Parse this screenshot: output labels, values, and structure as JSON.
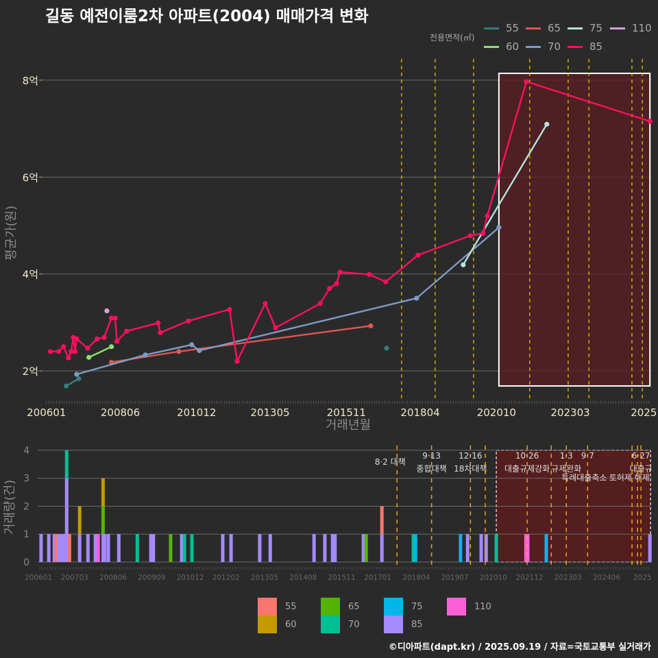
{
  "title": "길동 예전이룸2차 아파트(2004) 매매가격 변화",
  "legend_title": "전용면적(㎡)",
  "footer": "©디아파트(dapt.kr) / 2025.09.19 / 자료=국토교통부 실거래가",
  "colors": {
    "line": {
      "55": "#2f7f7b",
      "60": "#8fe070",
      "65": "#e0574e",
      "70": "#7c9cc6",
      "75": "#b6e3de",
      "85": "#ff0f5f",
      "110": "#d9a0d8"
    },
    "bar": {
      "55": "#F8766D",
      "60": "#C49A00",
      "65": "#53B400",
      "70": "#00C094",
      "75": "#00B6EB",
      "85": "#A58AFF",
      "110": "#FB61D7"
    },
    "policy": "#e6c000",
    "policy_bottom": "#f0a020",
    "highlight": "#5a1f22"
  },
  "legend_top": [
    {
      "label": "55",
      "key": "55"
    },
    {
      "label": "65",
      "key": "65"
    },
    {
      "label": "75",
      "key": "75"
    },
    {
      "label": "110",
      "key": "110"
    },
    {
      "label": "60",
      "key": "60"
    },
    {
      "label": "70",
      "key": "70"
    },
    {
      "label": "85",
      "key": "85"
    }
  ],
  "legend_bottom": [
    {
      "label": "55",
      "key": "55"
    },
    {
      "label": "60",
      "key": "60"
    },
    {
      "label": "65",
      "key": "65"
    },
    {
      "label": "70",
      "key": "70"
    },
    {
      "label": "75",
      "key": "75"
    },
    {
      "label": "85",
      "key": "85"
    },
    {
      "label": "110",
      "key": "110"
    }
  ],
  "chart_data": [
    {
      "type": "line",
      "title": "길동 예전이룸2차 아파트(2004) 매매가격 변화",
      "xlabel": "거래년월",
      "ylabel": "평균가(원)",
      "xlim": [
        2005.87,
        2025.82
      ],
      "ylim": [
        1.38,
        8.31
      ],
      "yticks": [
        {
          "v": 2,
          "label": "2억"
        },
        {
          "v": 4,
          "label": "4억"
        },
        {
          "v": 6,
          "label": "6억"
        },
        {
          "v": 8,
          "label": "8억"
        }
      ],
      "xticks": [
        {
          "v": 2006.0,
          "label": "200601"
        },
        {
          "v": 2008.42,
          "label": "200806"
        },
        {
          "v": 2010.92,
          "label": "201012"
        },
        {
          "v": 2013.33,
          "label": "201305"
        },
        {
          "v": 2015.83,
          "label": "201511"
        },
        {
          "v": 2018.25,
          "label": "201804"
        },
        {
          "v": 2020.75,
          "label": "202010"
        },
        {
          "v": 2023.17,
          "label": "202303"
        },
        {
          "v": 2025.58,
          "label": "2025"
        }
      ],
      "highlight_box": {
        "x0": 2020.83,
        "x1": 2025.78,
        "y0": 1.69,
        "y1": 8.14
      },
      "policy_lines": [
        2017.64,
        2018.74,
        2020.0,
        2021.84,
        2023.1,
        2023.78,
        2025.19,
        2025.53
      ],
      "series": [
        {
          "name": "55",
          "segments": [
            [
              [
                2006.65,
                1.69
              ],
              [
                2007.06,
                1.84
              ]
            ],
            [
              [
                2017.15,
                2.47
              ]
            ]
          ]
        },
        {
          "name": "60",
          "segments": [
            [
              [
                2007.39,
                2.28
              ],
              [
                2008.13,
                2.5
              ]
            ]
          ]
        },
        {
          "name": "65",
          "segments": [
            [
              [
                2008.13,
                2.18
              ],
              [
                2010.34,
                2.4
              ],
              [
                2016.63,
                2.93
              ]
            ]
          ]
        },
        {
          "name": "70",
          "segments": [
            [
              [
                2006.99,
                1.93
              ],
              [
                2009.24,
                2.33
              ],
              [
                2010.76,
                2.54
              ],
              [
                2011.01,
                2.42
              ],
              [
                2018.13,
                3.5
              ],
              [
                2020.83,
                4.96
              ]
            ]
          ]
        },
        {
          "name": "75",
          "segments": [
            [
              [
                2019.66,
                4.19
              ],
              [
                2022.4,
                7.09
              ]
            ]
          ]
        },
        {
          "name": "85",
          "segments": [
            [
              [
                2006.13,
                2.4
              ],
              [
                2006.4,
                2.4
              ],
              [
                2006.56,
                2.5
              ],
              [
                2006.72,
                2.27
              ],
              [
                2006.81,
                2.4
              ],
              [
                2006.88,
                2.69
              ],
              [
                2006.94,
                2.4
              ],
              [
                2006.99,
                2.66
              ],
              [
                2007.35,
                2.47
              ],
              [
                2007.66,
                2.66
              ],
              [
                2007.89,
                2.69
              ],
              [
                2008.13,
                3.09
              ],
              [
                2008.25,
                3.09
              ],
              [
                2008.31,
                2.61
              ],
              [
                2008.63,
                2.82
              ],
              [
                2009.66,
                2.99
              ],
              [
                2009.73,
                2.79
              ],
              [
                2010.65,
                3.03
              ],
              [
                2012.0,
                3.27
              ],
              [
                2012.25,
                2.2
              ],
              [
                2013.17,
                3.39
              ],
              [
                2013.51,
                2.89
              ],
              [
                2014.97,
                3.39
              ],
              [
                2015.28,
                3.7
              ],
              [
                2015.51,
                3.8
              ],
              [
                2015.62,
                4.04
              ],
              [
                2016.58,
                3.99
              ],
              [
                2017.12,
                3.84
              ],
              [
                2018.18,
                4.39
              ],
              [
                2019.89,
                4.79
              ],
              [
                2020.31,
                4.84
              ],
              [
                2020.45,
                5.2
              ],
              [
                2021.73,
                7.97
              ],
              [
                2025.78,
                7.15
              ]
            ]
          ]
        },
        {
          "name": "110",
          "segments": [
            [
              [
                2007.98,
                3.24
              ]
            ]
          ]
        }
      ]
    },
    {
      "type": "bar",
      "xlabel": "",
      "ylabel": "거래량(건)",
      "xlim": [
        2005.93,
        2025.82
      ],
      "ylim": [
        0,
        4.17
      ],
      "yticks": [
        0,
        1,
        2,
        3,
        4
      ],
      "xticks": [
        {
          "v": 2006.0,
          "label": "200601"
        },
        {
          "v": 2007.17,
          "label": "200703"
        },
        {
          "v": 2008.42,
          "label": "200806"
        },
        {
          "v": 2009.67,
          "label": "200909"
        },
        {
          "v": 2010.92,
          "label": "201012"
        },
        {
          "v": 2012.08,
          "label": "201202"
        },
        {
          "v": 2013.33,
          "label": "201305"
        },
        {
          "v": 2014.58,
          "label": "201408"
        },
        {
          "v": 2015.83,
          "label": "201511"
        },
        {
          "v": 2017.0,
          "label": "201701"
        },
        {
          "v": 2018.25,
          "label": "201804"
        },
        {
          "v": 2019.5,
          "label": "201907"
        },
        {
          "v": 2020.75,
          "label": "202010"
        },
        {
          "v": 2021.92,
          "label": "202112"
        },
        {
          "v": 2023.17,
          "label": "202303"
        },
        {
          "v": 2024.42,
          "label": "202406"
        },
        {
          "v": 2025.58,
          "label": "2025"
        }
      ],
      "highlight_box": {
        "x0": 2020.8,
        "x1": 2025.8,
        "y0": 0,
        "y1": 4
      },
      "policies": [
        {
          "v": 2017.58,
          "date": "8·2 대책",
          "text": ""
        },
        {
          "v": 2018.7,
          "date": "9·13",
          "text": "종합대책"
        },
        {
          "v": 2019.96,
          "date": "12·16",
          "text": "18차대책"
        },
        {
          "v": 2020.44,
          "date": "",
          "text": ""
        },
        {
          "v": 2021.8,
          "date": "10·26",
          "text": "대출규제강화"
        },
        {
          "v": 2022.58,
          "date": "",
          "text": ""
        },
        {
          "v": 2023.07,
          "date": "1·3",
          "text": "규제완화"
        },
        {
          "v": 2023.76,
          "date": "9·7",
          "text": "특례대출축소"
        },
        {
          "v": 2025.2,
          "date": "",
          "text": ""
        },
        {
          "v": 2025.38,
          "date": "",
          "text": "토허제 해제"
        },
        {
          "v": 2025.49,
          "date": "6·27",
          "text": "대출규"
        }
      ],
      "bars": [
        {
          "x": 2006.04,
          "c": {
            "85": 1
          }
        },
        {
          "x": 2006.29,
          "c": {
            "85": 1
          }
        },
        {
          "x": 2006.47,
          "c": {
            "85": 1
          }
        },
        {
          "x": 2006.53,
          "c": {
            "55": 1
          }
        },
        {
          "x": 2006.62,
          "c": {
            "85": 1
          }
        },
        {
          "x": 2006.69,
          "c": {
            "85": 1
          }
        },
        {
          "x": 2006.76,
          "c": {
            "85": 1
          }
        },
        {
          "x": 2006.82,
          "c": {
            "85": 1
          }
        },
        {
          "x": 2006.87,
          "c": {
            "85": 3,
            "70": 1
          }
        },
        {
          "x": 2006.96,
          "c": {
            "55": 1
          }
        },
        {
          "x": 2007.29,
          "c": {
            "85": 1,
            "60": 1
          }
        },
        {
          "x": 2007.56,
          "c": {
            "85": 1
          }
        },
        {
          "x": 2007.8,
          "c": {
            "85": 1
          }
        },
        {
          "x": 2007.89,
          "c": {
            "110": 1
          }
        },
        {
          "x": 2008.05,
          "c": {
            "85": 1,
            "65": 1,
            "60": 1
          }
        },
        {
          "x": 2008.1,
          "c": {
            "85": 1
          }
        },
        {
          "x": 2008.22,
          "c": {
            "85": 1
          }
        },
        {
          "x": 2008.56,
          "c": {
            "85": 1
          }
        },
        {
          "x": 2009.16,
          "c": {
            "70": 1
          }
        },
        {
          "x": 2009.6,
          "c": {
            "85": 1
          }
        },
        {
          "x": 2009.68,
          "c": {
            "85": 1
          }
        },
        {
          "x": 2010.24,
          "c": {
            "65": 1
          }
        },
        {
          "x": 2010.6,
          "c": {
            "85": 1
          }
        },
        {
          "x": 2010.69,
          "c": {
            "70": 1
          }
        },
        {
          "x": 2010.93,
          "c": {
            "70": 1
          }
        },
        {
          "x": 2011.93,
          "c": {
            "85": 1
          }
        },
        {
          "x": 2012.2,
          "c": {
            "85": 1
          }
        },
        {
          "x": 2013.13,
          "c": {
            "85": 1
          }
        },
        {
          "x": 2013.47,
          "c": {
            "85": 1
          }
        },
        {
          "x": 2014.89,
          "c": {
            "85": 1
          }
        },
        {
          "x": 2015.24,
          "c": {
            "85": 1
          }
        },
        {
          "x": 2015.49,
          "c": {
            "85": 1
          }
        },
        {
          "x": 2015.57,
          "c": {
            "85": 1
          }
        },
        {
          "x": 2016.49,
          "c": {
            "85": 1
          }
        },
        {
          "x": 2016.58,
          "c": {
            "65": 1
          }
        },
        {
          "x": 2017.09,
          "c": {
            "85": 1,
            "55": 1
          }
        },
        {
          "x": 2018.11,
          "c": {
            "70": 1
          }
        },
        {
          "x": 2018.18,
          "c": {
            "75": 1
          }
        },
        {
          "x": 2019.64,
          "c": {
            "75": 1
          }
        },
        {
          "x": 2019.87,
          "c": {
            "85": 1
          }
        },
        {
          "x": 2020.31,
          "c": {
            "85": 1
          }
        },
        {
          "x": 2020.47,
          "c": {
            "85": 1
          }
        },
        {
          "x": 2020.8,
          "c": {
            "70": 1
          }
        },
        {
          "x": 2021.76,
          "c": {
            "110": 1
          }
        },
        {
          "x": 2021.82,
          "c": {
            "110": 1
          }
        },
        {
          "x": 2022.42,
          "c": {
            "75": 1
          }
        },
        {
          "x": 2025.78,
          "c": {
            "85": 1
          }
        }
      ]
    }
  ]
}
